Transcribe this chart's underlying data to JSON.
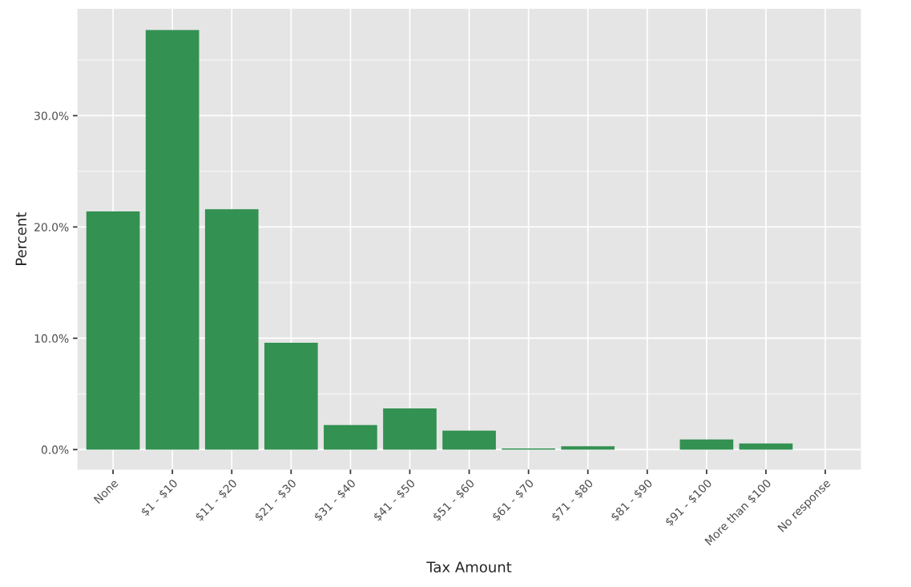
{
  "chart_data": {
    "type": "bar",
    "xlabel": "Tax Amount",
    "ylabel": "Percent",
    "categories": [
      "None",
      "$1 - $10",
      "$11 - $20",
      "$21 - $30",
      "$31 - $40",
      "$41 - $50",
      "$51 - $60",
      "$61 - $70",
      "$71 - $80",
      "$81 - $90",
      "$91 - $100",
      "More than $100",
      "No response"
    ],
    "values": [
      21.4,
      37.7,
      21.6,
      9.6,
      2.2,
      3.7,
      1.7,
      0.1,
      0.3,
      0,
      0.9,
      0.55,
      0
    ],
    "color": "#339152",
    "ylim": [
      -1.8,
      39.6
    ],
    "yticks": [
      {
        "value": 0,
        "label": "0.0%"
      },
      {
        "value": 10,
        "label": "10.0%"
      },
      {
        "value": 20,
        "label": "20.0%"
      },
      {
        "value": 30,
        "label": "30.0%"
      }
    ],
    "grid": true,
    "legend": false
  }
}
